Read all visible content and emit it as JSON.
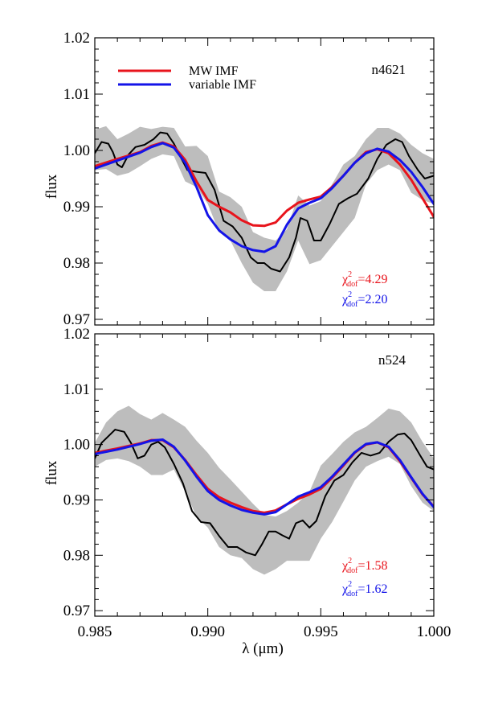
{
  "chart_data": {
    "type": "line",
    "xlabel": "λ (μm)",
    "xlim": [
      0.985,
      1.0
    ],
    "x_ticks": [
      "0.985",
      "0.990",
      "0.995",
      "1.000"
    ],
    "x_tick_values": [
      0.985,
      0.99,
      0.995,
      1.0
    ],
    "colors": {
      "MW IMF": "#e8141c",
      "variable IMF": "#1414e8",
      "data": "#000000",
      "error_band": "#bdbdbd"
    },
    "legend": {
      "placement": "top-left",
      "entries": [
        "MW IMF",
        "variable IMF"
      ]
    },
    "panels": [
      {
        "name": "n4621",
        "ylabel": "flux",
        "ylim": [
          0.969,
          1.02
        ],
        "y_ticks": [
          "0.97",
          "0.98",
          "0.99",
          "1.00",
          "1.01",
          "1.02"
        ],
        "y_tick_values": [
          0.97,
          0.98,
          0.99,
          1.0,
          1.01,
          1.02
        ],
        "show_legend": true,
        "chi2": [
          {
            "series": "MW IMF",
            "symbol": "χ",
            "sup": "2",
            "sub": "dof",
            "text": "=4.29"
          },
          {
            "series": "variable IMF",
            "symbol": "χ",
            "sup": "2",
            "sub": "dof",
            "text": "=2.20"
          }
        ],
        "band": {
          "x": [
            0.985,
            0.9855,
            0.986,
            0.9865,
            0.987,
            0.9875,
            0.988,
            0.9885,
            0.989,
            0.9895,
            0.99,
            0.9905,
            0.991,
            0.9915,
            0.992,
            0.9925,
            0.993,
            0.9935,
            0.994,
            0.9945,
            0.995,
            0.9955,
            0.996,
            0.9965,
            0.997,
            0.9975,
            0.998,
            0.9985,
            0.999,
            0.9995,
            1.0
          ],
          "upper": [
            1.0037,
            1.0043,
            1.002,
            1.003,
            1.0042,
            1.0038,
            1.0042,
            1.004,
            1.0007,
            1.0008,
            0.999,
            0.9927,
            0.9917,
            0.99,
            0.9855,
            0.9845,
            0.984,
            0.986,
            0.992,
            0.9902,
            0.991,
            0.994,
            0.9975,
            0.999,
            1.002,
            1.004,
            1.004,
            1.003,
            1.001,
            0.9995,
            0.9985
          ],
          "lower": [
            0.9965,
            0.9967,
            0.9955,
            0.996,
            0.9972,
            0.9985,
            0.9993,
            0.999,
            0.9945,
            0.9935,
            0.9905,
            0.9855,
            0.984,
            0.98,
            0.9765,
            0.975,
            0.975,
            0.9785,
            0.984,
            0.9798,
            0.9805,
            0.983,
            0.9855,
            0.988,
            0.994,
            0.9965,
            0.9975,
            0.9965,
            0.9925,
            0.9912,
            0.9905
          ]
        },
        "series": [
          {
            "name": "data",
            "x": [
              0.985,
              0.9853,
              0.9856,
              0.9858,
              0.986,
              0.9862,
              0.9865,
              0.9868,
              0.9872,
              0.9876,
              0.9879,
              0.9882,
              0.9885,
              0.9888,
              0.9891,
              0.9895,
              0.9899,
              0.9903,
              0.9907,
              0.9911,
              0.9915,
              0.9919,
              0.9922,
              0.9925,
              0.9928,
              0.9932,
              0.9936,
              0.9939,
              0.9941,
              0.9944,
              0.9947,
              0.995,
              0.9954,
              0.9958,
              0.9962,
              0.9966,
              0.9971,
              0.9975,
              0.9979,
              0.9983,
              0.9986,
              0.9989,
              0.9993,
              0.9996,
              1.0
            ],
            "y": [
              0.9995,
              1.0015,
              1.0012,
              0.9997,
              0.9975,
              0.997,
              0.9993,
              1.0006,
              1.001,
              1.002,
              1.0032,
              1.003,
              1.0012,
              0.9988,
              0.9965,
              0.9962,
              0.996,
              0.993,
              0.9875,
              0.9865,
              0.9845,
              0.981,
              0.98,
              0.98,
              0.979,
              0.9785,
              0.981,
              0.9845,
              0.988,
              0.9875,
              0.984,
              0.984,
              0.987,
              0.9905,
              0.9915,
              0.9923,
              0.995,
              0.9985,
              1.001,
              1.002,
              1.0015,
              0.999,
              0.9965,
              0.995,
              0.9955
            ]
          },
          {
            "name": "MW IMF",
            "x": [
              0.985,
              0.986,
              0.987,
              0.9875,
              0.988,
              0.9885,
              0.989,
              0.9895,
              0.99,
              0.9905,
              0.991,
              0.9915,
              0.992,
              0.9925,
              0.993,
              0.9935,
              0.994,
              0.9945,
              0.995,
              0.9955,
              0.996,
              0.9965,
              0.997,
              0.9975,
              0.998,
              0.9985,
              0.999,
              0.9995,
              1.0
            ],
            "y": [
              0.9972,
              0.9985,
              0.9997,
              1.0008,
              1.0014,
              1.0007,
              0.9983,
              0.9945,
              0.9912,
              0.99,
              0.989,
              0.9876,
              0.9867,
              0.9866,
              0.9872,
              0.9893,
              0.9907,
              0.9913,
              0.9918,
              0.9935,
              0.9955,
              0.9978,
              0.9997,
              1.0002,
              0.9995,
              0.9975,
              0.9948,
              0.9915,
              0.9882
            ]
          },
          {
            "name": "variable IMF",
            "x": [
              0.985,
              0.986,
              0.987,
              0.9875,
              0.988,
              0.9885,
              0.989,
              0.9895,
              0.99,
              0.9905,
              0.991,
              0.9915,
              0.992,
              0.9925,
              0.993,
              0.9935,
              0.994,
              0.9945,
              0.995,
              0.9955,
              0.996,
              0.9965,
              0.997,
              0.9975,
              0.998,
              0.9985,
              0.999,
              0.9995,
              1.0
            ],
            "y": [
              0.9968,
              0.9982,
              0.9996,
              1.0006,
              1.0013,
              1.0005,
              0.9978,
              0.9935,
              0.9885,
              0.9858,
              0.9842,
              0.983,
              0.9823,
              0.982,
              0.983,
              0.9868,
              0.9897,
              0.9907,
              0.9915,
              0.9933,
              0.9955,
              0.9978,
              0.9995,
              1.0003,
              0.9998,
              0.9983,
              0.9962,
              0.9935,
              0.9905
            ]
          }
        ]
      },
      {
        "name": "n524",
        "ylabel": "flux",
        "ylim": [
          0.969,
          1.02
        ],
        "y_ticks": [
          "0.97",
          "0.98",
          "0.99",
          "1.00",
          "1.01",
          "1.02"
        ],
        "y_tick_values": [
          0.97,
          0.98,
          0.99,
          1.0,
          1.01,
          1.02
        ],
        "show_legend": false,
        "chi2": [
          {
            "series": "MW IMF",
            "symbol": "χ",
            "sup": "2",
            "sub": "dof",
            "text": "=1.58"
          },
          {
            "series": "variable IMF",
            "symbol": "χ",
            "sup": "2",
            "sub": "dof",
            "text": "=1.62"
          }
        ],
        "band": {
          "x": [
            0.985,
            0.9855,
            0.986,
            0.9865,
            0.987,
            0.9875,
            0.988,
            0.9885,
            0.989,
            0.9895,
            0.99,
            0.9905,
            0.991,
            0.9915,
            0.992,
            0.9925,
            0.993,
            0.9935,
            0.994,
            0.9945,
            0.995,
            0.9955,
            0.996,
            0.9965,
            0.997,
            0.9975,
            0.998,
            0.9985,
            0.999,
            0.9995,
            1.0
          ],
          "upper": [
            1.0003,
            1.004,
            1.006,
            1.007,
            1.0055,
            1.0045,
            1.0057,
            1.0045,
            1.0032,
            1.0007,
            0.9985,
            0.9958,
            0.9937,
            0.9915,
            0.9893,
            0.9873,
            0.987,
            0.988,
            0.9895,
            0.9915,
            0.9962,
            0.9983,
            1.0005,
            1.0022,
            1.0032,
            1.0048,
            1.0065,
            1.006,
            1.004,
            1.0005,
            0.9975
          ],
          "lower": [
            0.996,
            0.9972,
            0.9975,
            0.997,
            0.996,
            0.9945,
            0.9945,
            0.9955,
            0.9915,
            0.987,
            0.985,
            0.9815,
            0.98,
            0.9795,
            0.9775,
            0.9765,
            0.9775,
            0.979,
            0.979,
            0.979,
            0.983,
            0.986,
            0.9897,
            0.9935,
            0.996,
            0.997,
            0.9978,
            0.9965,
            0.9925,
            0.9895,
            0.988
          ]
        },
        "series": [
          {
            "name": "data",
            "x": [
              0.985,
              0.9853,
              0.9856,
              0.9859,
              0.9863,
              0.9866,
              0.9869,
              0.9872,
              0.9875,
              0.9878,
              0.9881,
              0.9885,
              0.9889,
              0.9893,
              0.9897,
              0.9901,
              0.9905,
              0.9909,
              0.9913,
              0.9917,
              0.9921,
              0.9924,
              0.9927,
              0.993,
              0.9933,
              0.9936,
              0.9939,
              0.9942,
              0.9945,
              0.9948,
              0.9952,
              0.9956,
              0.996,
              0.9964,
              0.9968,
              0.9972,
              0.9976,
              0.998,
              0.9984,
              0.9987,
              0.999,
              0.9994,
              0.9997,
              1.0
            ],
            "y": [
              0.9975,
              1.0003,
              1.0015,
              1.0027,
              1.0023,
              1.0003,
              0.9975,
              0.998,
              1.0,
              1.0005,
              0.9995,
              0.9965,
              0.993,
              0.988,
              0.986,
              0.9858,
              0.9835,
              0.9815,
              0.9815,
              0.9805,
              0.98,
              0.982,
              0.9843,
              0.9843,
              0.9836,
              0.983,
              0.9858,
              0.9863,
              0.985,
              0.9862,
              0.9907,
              0.9935,
              0.9945,
              0.9968,
              0.9985,
              0.998,
              0.9985,
              1.0005,
              1.0018,
              1.002,
              1.0008,
              0.998,
              0.996,
              0.9955
            ]
          },
          {
            "name": "MW IMF",
            "x": [
              0.985,
              0.986,
              0.987,
              0.9875,
              0.988,
              0.9885,
              0.989,
              0.9895,
              0.99,
              0.9905,
              0.991,
              0.9915,
              0.992,
              0.9925,
              0.993,
              0.9935,
              0.994,
              0.9945,
              0.995,
              0.9955,
              0.996,
              0.9965,
              0.997,
              0.9975,
              0.998,
              0.9985,
              0.999,
              0.9995,
              1.0
            ],
            "y": [
              0.9985,
              0.9993,
              1.0002,
              1.0008,
              1.0008,
              0.9995,
              0.9972,
              0.9945,
              0.992,
              0.9905,
              0.9895,
              0.9887,
              0.988,
              0.9877,
              0.9881,
              0.9892,
              0.9902,
              0.991,
              0.992,
              0.994,
              0.9962,
              0.9985,
              1.0,
              1.0004,
              0.9995,
              0.997,
              0.994,
              0.991,
              0.9888
            ]
          },
          {
            "name": "variable IMF",
            "x": [
              0.985,
              0.986,
              0.987,
              0.9875,
              0.988,
              0.9885,
              0.989,
              0.9895,
              0.99,
              0.9905,
              0.991,
              0.9915,
              0.992,
              0.9925,
              0.993,
              0.9935,
              0.994,
              0.9945,
              0.995,
              0.9955,
              0.996,
              0.9965,
              0.997,
              0.9975,
              0.998,
              0.9985,
              0.999,
              0.9995,
              1.0
            ],
            "y": [
              0.9983,
              0.9991,
              1.0001,
              1.0007,
              1.0009,
              0.9996,
              0.9971,
              0.9942,
              0.9916,
              0.99,
              0.989,
              0.9882,
              0.9877,
              0.9874,
              0.9878,
              0.9892,
              0.9906,
              0.9914,
              0.9923,
              0.9942,
              0.9964,
              0.9986,
              1.0001,
              1.0004,
              0.9996,
              0.9972,
              0.9941,
              0.9911,
              0.9887
            ]
          }
        ]
      }
    ]
  }
}
